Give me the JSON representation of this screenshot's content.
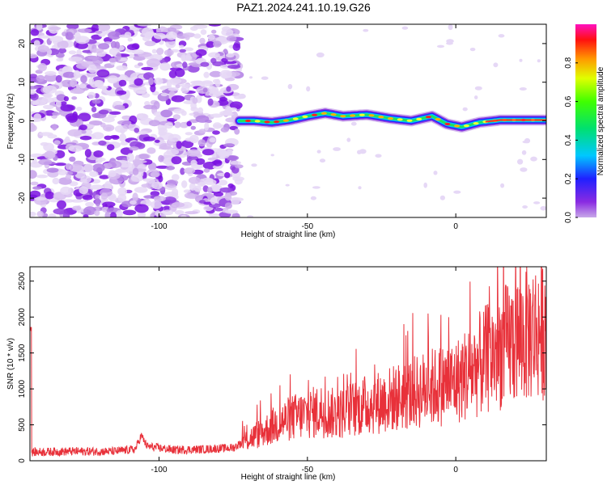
{
  "title": "PAZ1.2024.241.10.19.G26",
  "chart_data": [
    {
      "type": "heatmap",
      "xlabel": "Height of straight line (km)",
      "ylabel": "Frequency (Hz)",
      "xlim": [
        -143.5,
        30.5
      ],
      "ylim": [
        -25,
        25
      ],
      "x_ticks": [
        -100,
        -50,
        0
      ],
      "y_ticks": [
        -20,
        -10,
        0,
        10,
        20
      ],
      "grid": false,
      "colorbar": {
        "label": "Normalized spectral amplitude",
        "range": [
          0,
          1
        ],
        "ticks": [
          0.0,
          0.2,
          0.4,
          0.6,
          0.8
        ],
        "tick_labels": [
          "0.0",
          "0.2",
          "0.4",
          "0.6",
          "0.8"
        ]
      },
      "ridge": {
        "description_x": [
          -73,
          -68,
          -62,
          -56,
          -50,
          -44,
          -38,
          -30,
          -22,
          -15,
          -8,
          -3,
          2,
          8,
          15,
          30.5
        ],
        "frequency_hz": [
          0.0,
          0.0,
          -0.4,
          0.2,
          1.2,
          2.0,
          1.2,
          1.6,
          0.6,
          0.0,
          1.2,
          -0.8,
          -1.6,
          -0.4,
          0.2,
          0.2
        ]
      }
    },
    {
      "type": "line",
      "xlabel": "Height of straight line (km)",
      "ylabel": "SNR (10 * v/v)",
      "xlim": [
        -143.5,
        30.5
      ],
      "ylim": [
        0,
        2700
      ],
      "x_ticks": [
        -100,
        -50,
        0
      ],
      "y_ticks": [
        0,
        500,
        1000,
        1500,
        2000,
        2500
      ],
      "grid": false,
      "color": "#e8313a",
      "series": [
        {
          "x": [
            -143,
            -130,
            -115,
            -108,
            -106,
            -104,
            -95,
            -85,
            -75,
            -70,
            -65,
            -60,
            -55,
            -50,
            -45,
            -40,
            -35,
            -30,
            -25,
            -20,
            -15,
            -10,
            -5,
            0,
            5,
            10,
            15,
            20,
            25,
            30
          ],
          "values": [
            120,
            130,
            130,
            160,
            350,
            200,
            150,
            160,
            180,
            300,
            400,
            520,
            600,
            650,
            700,
            640,
            720,
            780,
            820,
            880,
            930,
            1000,
            1050,
            1100,
            1250,
            1400,
            1550,
            1680,
            1780,
            1860
          ]
        }
      ]
    }
  ]
}
